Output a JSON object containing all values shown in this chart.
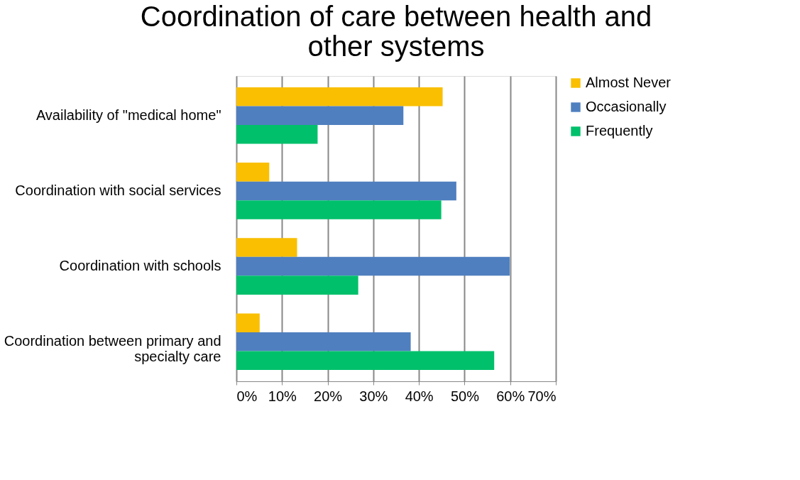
{
  "chart_data": {
    "type": "bar",
    "orientation": "horizontal",
    "title": "Coordination of care between health and other systems",
    "categories": [
      "Availability of \"medical home\"",
      "Coordination with social services",
      "Coordination with schools",
      "Coordination between primary and specialty care"
    ],
    "series": [
      {
        "name": "Almost Never",
        "color": "#f9bf00",
        "values": [
          45.2,
          7.2,
          13.3,
          5.1
        ]
      },
      {
        "name": "Occasionally",
        "color": "#4f7fbf",
        "values": [
          36.6,
          48.2,
          59.9,
          38.2
        ]
      },
      {
        "name": "Frequently",
        "color": "#00c06b",
        "values": [
          17.8,
          44.9,
          26.7,
          56.5
        ]
      }
    ],
    "xlim": [
      0,
      70
    ],
    "xticks": [
      {
        "value": 0,
        "label": "0%"
      },
      {
        "value": 10,
        "label": "10%"
      },
      {
        "value": 20,
        "label": "20%"
      },
      {
        "value": 30,
        "label": "30%"
      },
      {
        "value": 40,
        "label": "40%"
      },
      {
        "value": 50,
        "label": "50%"
      },
      {
        "value": 60,
        "label": "60%"
      },
      {
        "value": 70,
        "label": "70%"
      }
    ],
    "grid": "x",
    "legend": "right"
  }
}
